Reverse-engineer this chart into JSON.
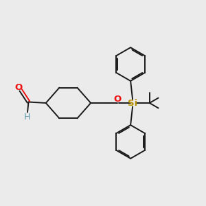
{
  "background_color": "#ebebeb",
  "bond_color": "#1a1a1a",
  "aldehyde_o_color": "#ee1111",
  "aldehyde_h_color": "#5a9aaa",
  "oxygen_color": "#ee1111",
  "silicon_color": "#b89000",
  "figsize": [
    3.0,
    3.0
  ],
  "dpi": 100,
  "xlim": [
    0,
    10
  ],
  "ylim": [
    0,
    10
  ]
}
